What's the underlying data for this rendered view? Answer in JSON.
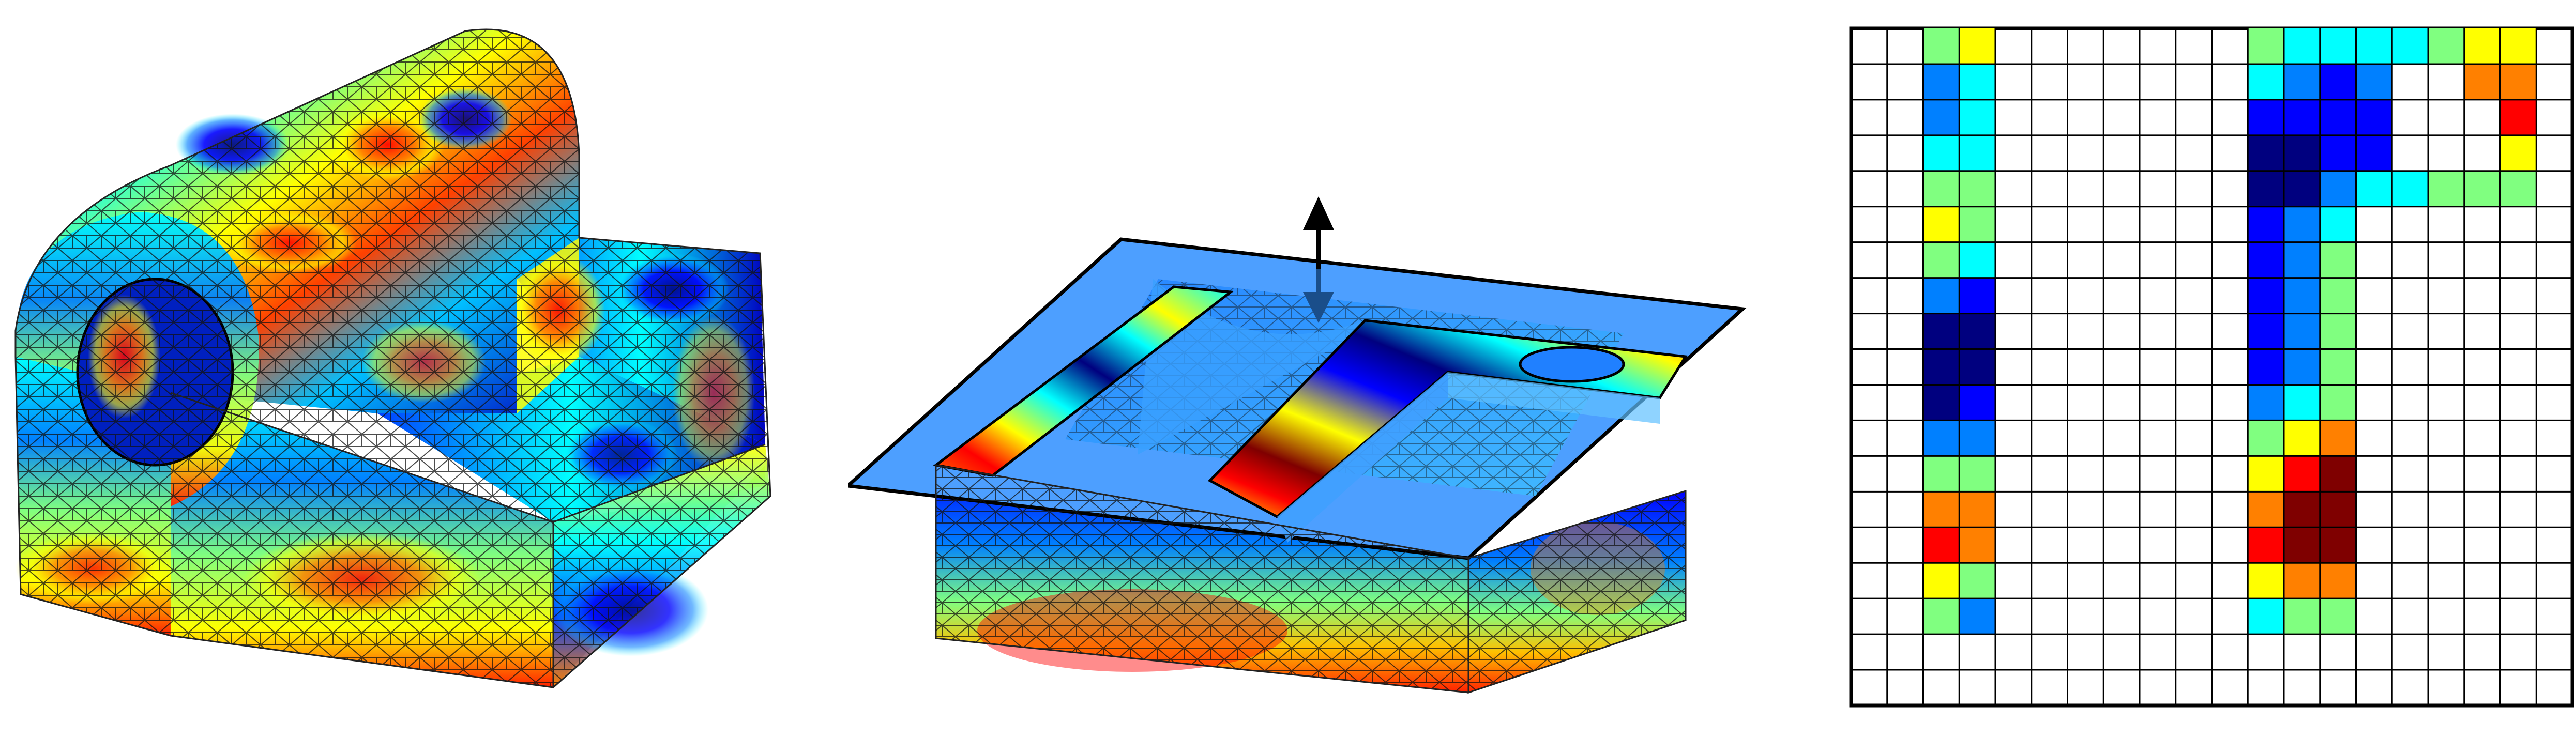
{
  "figure": {
    "panels": [
      {
        "id": "part",
        "content": "3d-mesh-part-with-field"
      },
      {
        "id": "slice",
        "content": "mesh-slice-with-plane"
      },
      {
        "id": "grid",
        "content": "pixel-grid-cross-section"
      }
    ]
  },
  "colormap": [
    "#00007f",
    "#0000ff",
    "#0080ff",
    "#00ffff",
    "#80ff80",
    "#ffff00",
    "#ff8000",
    "#ff0000",
    "#7f0000"
  ],
  "plane": {
    "fill": "#4d9fff",
    "edge": "#000000"
  },
  "arrow": {
    "color_top": "#000000",
    "color_bottom": "#1a4e8a",
    "meaning": "vertical-slicing-direction"
  },
  "grid": {
    "cols": 20,
    "rows": 19,
    "line_color": "#000000",
    "background": "#ffffff",
    "cell_levels": [
      [
        null,
        null,
        4,
        5,
        null,
        null,
        null,
        null,
        null,
        null,
        null,
        4,
        3,
        3,
        3,
        3,
        4,
        5,
        5,
        null
      ],
      [
        null,
        null,
        2,
        3,
        null,
        null,
        null,
        null,
        null,
        null,
        null,
        3,
        2,
        1,
        2,
        null,
        null,
        6,
        6,
        null
      ],
      [
        null,
        null,
        2,
        3,
        null,
        null,
        null,
        null,
        null,
        null,
        null,
        1,
        1,
        1,
        1,
        null,
        null,
        null,
        7,
        null
      ],
      [
        null,
        null,
        3,
        3,
        null,
        null,
        null,
        null,
        null,
        null,
        null,
        0,
        0,
        1,
        1,
        null,
        null,
        null,
        5,
        null
      ],
      [
        null,
        null,
        4,
        4,
        null,
        null,
        null,
        null,
        null,
        null,
        null,
        0,
        0,
        2,
        3,
        3,
        4,
        4,
        4,
        null
      ],
      [
        null,
        null,
        5,
        4,
        null,
        null,
        null,
        null,
        null,
        null,
        null,
        1,
        2,
        3,
        null,
        null,
        null,
        null,
        null,
        null
      ],
      [
        null,
        null,
        4,
        3,
        null,
        null,
        null,
        null,
        null,
        null,
        null,
        1,
        2,
        4,
        null,
        null,
        null,
        null,
        null,
        null
      ],
      [
        null,
        null,
        2,
        1,
        null,
        null,
        null,
        null,
        null,
        null,
        null,
        1,
        2,
        4,
        null,
        null,
        null,
        null,
        null,
        null
      ],
      [
        null,
        null,
        0,
        0,
        null,
        null,
        null,
        null,
        null,
        null,
        null,
        1,
        2,
        4,
        null,
        null,
        null,
        null,
        null,
        null
      ],
      [
        null,
        null,
        0,
        0,
        null,
        null,
        null,
        null,
        null,
        null,
        null,
        1,
        2,
        4,
        null,
        null,
        null,
        null,
        null,
        null
      ],
      [
        null,
        null,
        0,
        1,
        null,
        null,
        null,
        null,
        null,
        null,
        null,
        2,
        3,
        4,
        null,
        null,
        null,
        null,
        null,
        null
      ],
      [
        null,
        null,
        2,
        2,
        null,
        null,
        null,
        null,
        null,
        null,
        null,
        4,
        5,
        6,
        null,
        null,
        null,
        null,
        null,
        null
      ],
      [
        null,
        null,
        4,
        4,
        null,
        null,
        null,
        null,
        null,
        null,
        null,
        5,
        7,
        8,
        null,
        null,
        null,
        null,
        null,
        null
      ],
      [
        null,
        null,
        6,
        6,
        null,
        null,
        null,
        null,
        null,
        null,
        null,
        6,
        8,
        8,
        null,
        null,
        null,
        null,
        null,
        null
      ],
      [
        null,
        null,
        7,
        6,
        null,
        null,
        null,
        null,
        null,
        null,
        null,
        7,
        8,
        8,
        null,
        null,
        null,
        null,
        null,
        null
      ],
      [
        null,
        null,
        5,
        4,
        null,
        null,
        null,
        null,
        null,
        null,
        null,
        5,
        6,
        6,
        null,
        null,
        null,
        null,
        null,
        null
      ],
      [
        null,
        null,
        4,
        2,
        null,
        null,
        null,
        null,
        null,
        null,
        null,
        3,
        4,
        4,
        null,
        null,
        null,
        null,
        null,
        null
      ],
      [
        null,
        null,
        null,
        null,
        null,
        null,
        null,
        null,
        null,
        null,
        null,
        null,
        null,
        null,
        null,
        null,
        null,
        null,
        null,
        null
      ],
      [
        null,
        null,
        null,
        null,
        null,
        null,
        null,
        null,
        null,
        null,
        null,
        null,
        null,
        null,
        null,
        null,
        null,
        null,
        null,
        null
      ]
    ]
  }
}
